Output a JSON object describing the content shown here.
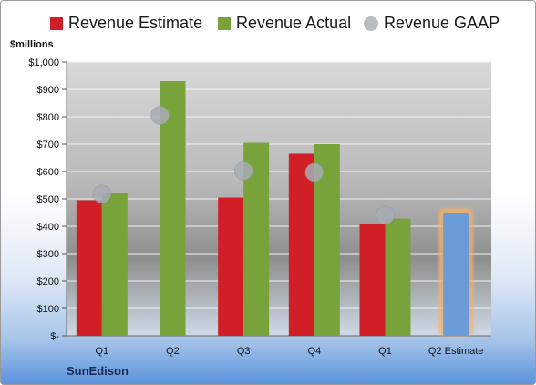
{
  "legend": {
    "estimate": "Revenue Estimate",
    "actual": "Revenue Actual",
    "gaap": "Revenue GAAP"
  },
  "colors": {
    "estimate": "#d01f26",
    "actual": "#78a33a",
    "gaap": "#a8acb5",
    "estimate_future": "#6b9bd6",
    "highlight": "#f5b26b"
  },
  "company": "SunEdison",
  "chart_data": {
    "type": "bar",
    "ylabel": "$millions",
    "ylim": [
      0,
      1000
    ],
    "yticks": [
      "$-",
      "$100",
      "$200",
      "$300",
      "$400",
      "$500",
      "$600",
      "$700",
      "$800",
      "$900",
      "$1,000"
    ],
    "categories": [
      "Q1",
      "Q2",
      "Q3",
      "Q4",
      "Q1",
      "Q2 Estimate"
    ],
    "series": [
      {
        "name": "Revenue Estimate",
        "values": [
          495,
          null,
          505,
          665,
          408,
          450
        ]
      },
      {
        "name": "Revenue Actual",
        "values": [
          520,
          930,
          705,
          700,
          428,
          null
        ]
      },
      {
        "name": "Revenue GAAP",
        "values": [
          518,
          805,
          602,
          597,
          440,
          null
        ]
      }
    ],
    "grid": true,
    "legend_position": "top"
  }
}
